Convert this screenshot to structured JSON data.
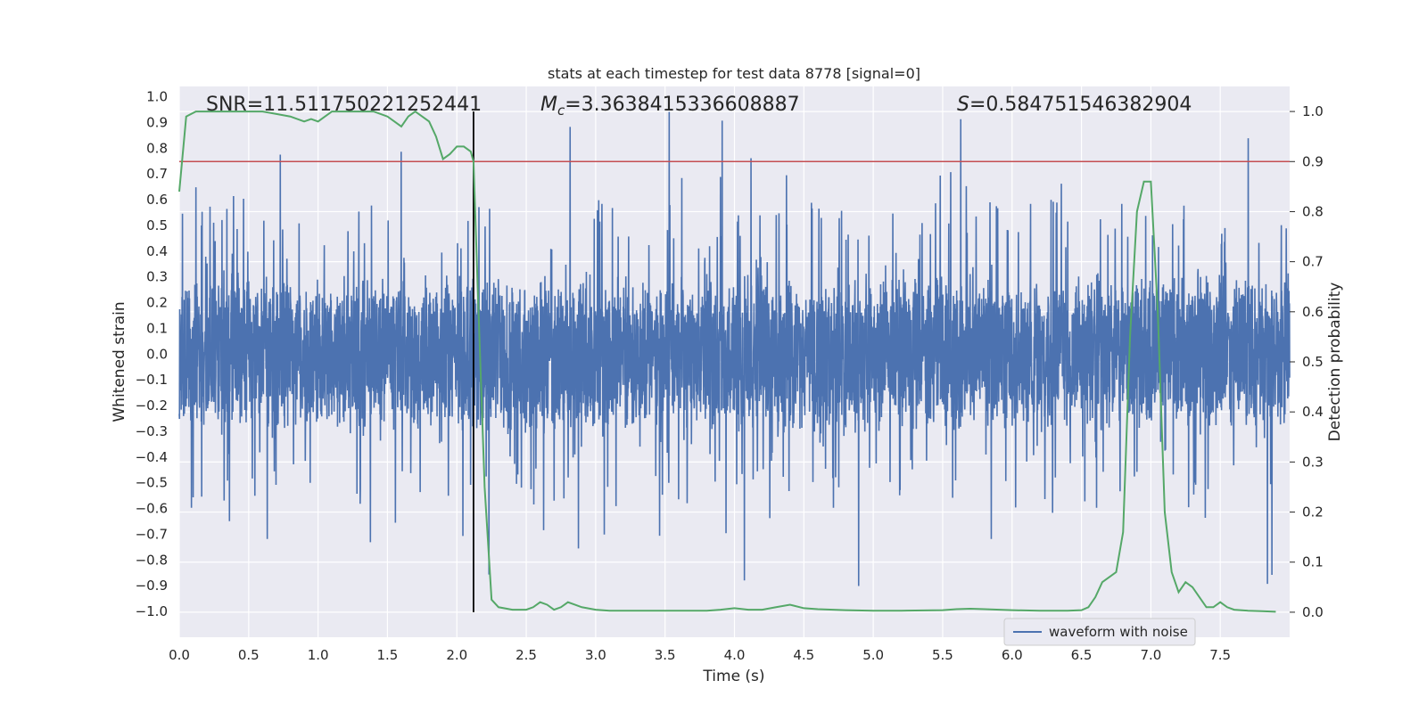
{
  "chart_data": {
    "type": "line",
    "title": "stats at each timestep for test data 8778 [signal=0]",
    "xlabel": "Time (s)",
    "ylabel": "Whitened strain",
    "y2label": "Detection probability",
    "xlim": [
      0.0,
      8.0
    ],
    "ylim": [
      -1.1,
      1.04
    ],
    "y2lim": [
      -0.05,
      1.05
    ],
    "x_ticks": [
      "0.0",
      "0.5",
      "1.0",
      "1.5",
      "2.0",
      "2.5",
      "3.0",
      "3.5",
      "4.0",
      "4.5",
      "5.0",
      "5.5",
      "6.0",
      "6.5",
      "7.0",
      "7.5"
    ],
    "y_ticks": [
      "1.0",
      "0.9",
      "0.8",
      "0.7",
      "0.6",
      "0.5",
      "0.4",
      "0.3",
      "0.2",
      "0.1",
      "0.0",
      "−0.1",
      "−0.2",
      "−0.3",
      "−0.4",
      "−0.5",
      "−0.6",
      "−0.7",
      "−0.8",
      "−0.9",
      "−1.0"
    ],
    "y2_ticks": [
      "1.0",
      "0.9",
      "0.8",
      "0.7",
      "0.6",
      "0.5",
      "0.4",
      "0.3",
      "0.2",
      "0.1",
      "0.0"
    ],
    "legend": {
      "label": "waveform with noise",
      "placement": "lower-right"
    },
    "annotations": {
      "snr": "SNR=11.511750221252441",
      "mc_symbol": "M",
      "mc_subscript": "c",
      "mc_value": "=3.3638415336608887",
      "s_symbol": "S",
      "s_value": "=0.584751546382904"
    },
    "threshold": 0.9,
    "vline_time": 2.12,
    "colors": {
      "waveform": "#4c72b0",
      "probability": "#55a868",
      "threshold": "#c44e52",
      "vline": "#000000",
      "background": "#eaeaf2",
      "grid": "#ffffff"
    },
    "waveform_envelope": {
      "description_free": true,
      "duration_s": 8.0,
      "typical_peak": 0.45,
      "max_peak": 0.95,
      "min_trough": -1.0
    },
    "probability_series": {
      "name": "detection probability",
      "x": [
        0.0,
        0.05,
        0.12,
        0.2,
        0.3,
        0.4,
        0.5,
        0.6,
        0.7,
        0.8,
        0.9,
        0.95,
        1.0,
        1.05,
        1.1,
        1.2,
        1.3,
        1.4,
        1.5,
        1.55,
        1.6,
        1.65,
        1.7,
        1.75,
        1.8,
        1.85,
        1.9,
        1.95,
        2.0,
        2.05,
        2.1,
        2.12,
        2.15,
        2.2,
        2.25,
        2.3,
        2.4,
        2.5,
        2.55,
        2.6,
        2.65,
        2.7,
        2.75,
        2.8,
        2.85,
        2.9,
        3.0,
        3.1,
        3.2,
        3.4,
        3.6,
        3.8,
        3.9,
        4.0,
        4.1,
        4.2,
        4.3,
        4.4,
        4.5,
        4.6,
        4.8,
        5.0,
        5.2,
        5.5,
        5.6,
        5.7,
        5.8,
        6.0,
        6.2,
        6.4,
        6.5,
        6.55,
        6.6,
        6.65,
        6.7,
        6.75,
        6.8,
        6.85,
        6.9,
        6.95,
        7.0,
        7.05,
        7.1,
        7.15,
        7.2,
        7.25,
        7.3,
        7.35,
        7.4,
        7.45,
        7.5,
        7.55,
        7.6,
        7.7,
        7.8,
        7.9
      ],
      "values": [
        0.84,
        0.99,
        1.0,
        1.0,
        1.0,
        1.0,
        1.0,
        1.0,
        0.995,
        0.99,
        0.98,
        0.985,
        0.98,
        0.99,
        1.0,
        1.0,
        1.0,
        1.0,
        0.99,
        0.98,
        0.97,
        0.99,
        1.0,
        0.99,
        0.98,
        0.95,
        0.905,
        0.915,
        0.93,
        0.93,
        0.92,
        0.9,
        0.65,
        0.25,
        0.025,
        0.01,
        0.005,
        0.005,
        0.01,
        0.02,
        0.015,
        0.005,
        0.01,
        0.02,
        0.015,
        0.01,
        0.005,
        0.003,
        0.003,
        0.003,
        0.003,
        0.003,
        0.005,
        0.008,
        0.005,
        0.005,
        0.01,
        0.015,
        0.008,
        0.006,
        0.004,
        0.003,
        0.003,
        0.004,
        0.006,
        0.007,
        0.006,
        0.004,
        0.003,
        0.003,
        0.004,
        0.01,
        0.03,
        0.06,
        0.07,
        0.08,
        0.16,
        0.55,
        0.8,
        0.86,
        0.86,
        0.6,
        0.2,
        0.08,
        0.04,
        0.06,
        0.05,
        0.03,
        0.01,
        0.01,
        0.02,
        0.01,
        0.005,
        0.003,
        0.002,
        0.001
      ]
    }
  }
}
